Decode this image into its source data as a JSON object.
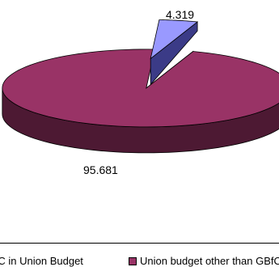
{
  "chart_data": {
    "type": "pie",
    "style": "3d-exploded",
    "title": "",
    "slices": [
      {
        "label": "GBfC in Union Budget",
        "value": 4.319,
        "value_label": "4.319",
        "color": "#9999ff",
        "side_color": "#3b3b87"
      },
      {
        "label": "Union budget other than GBfC",
        "value": 95.681,
        "value_label": "95.681",
        "color": "#993366",
        "side_color": "#4d1933"
      }
    ],
    "legend_position": "bottom",
    "legend": [
      {
        "label": "GBfC in Union Budget",
        "color": "#9999ff"
      },
      {
        "label": "Union budget other than GBfC",
        "color": "#993366"
      }
    ]
  }
}
